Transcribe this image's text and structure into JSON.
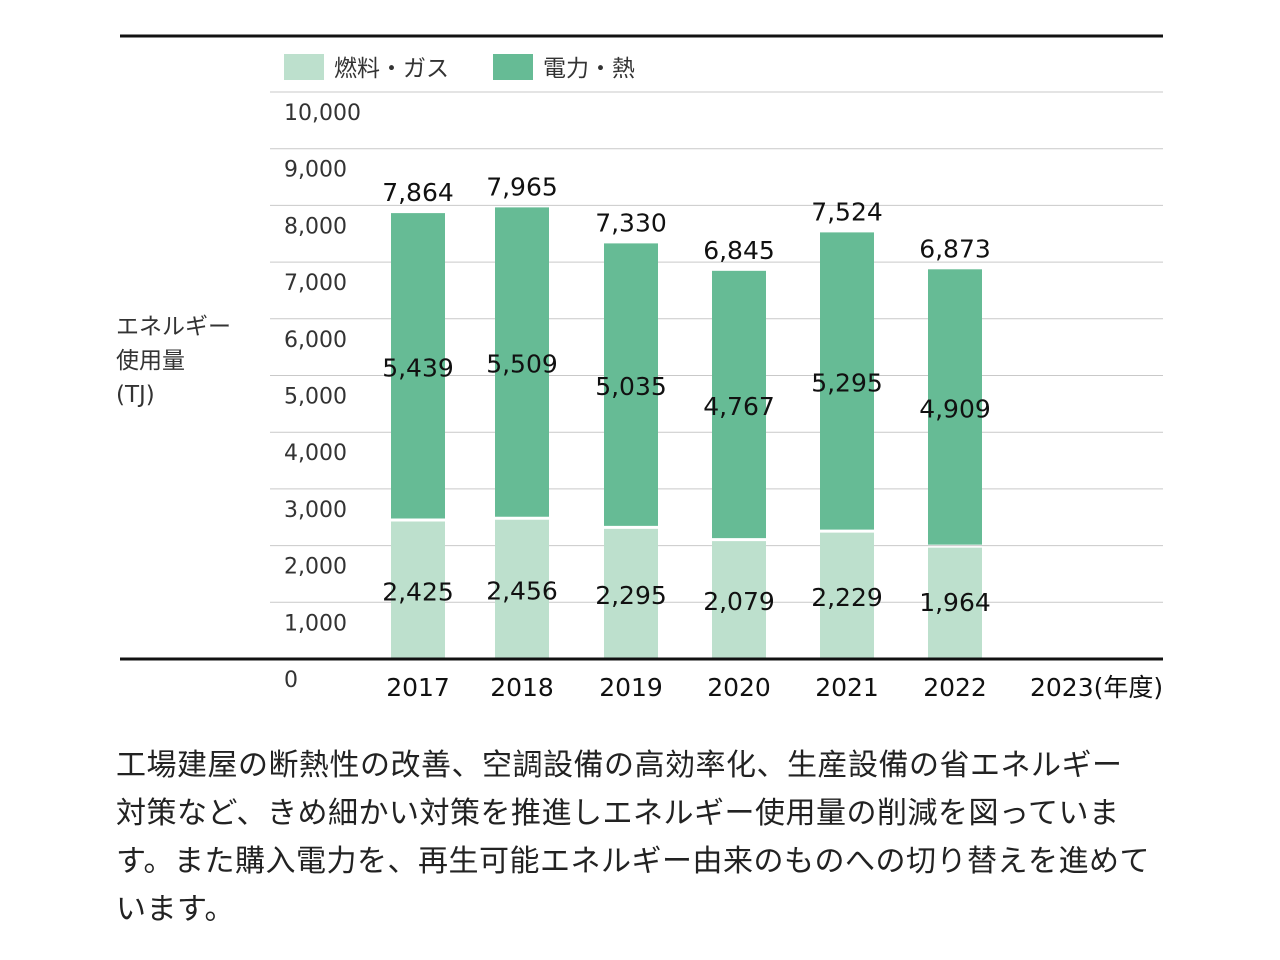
{
  "chart_data": {
    "type": "bar",
    "stacked": true,
    "categories": [
      "2017",
      "2018",
      "2019",
      "2020",
      "2021",
      "2022",
      "2023"
    ],
    "x_unit_label": "(年度)",
    "ylabel": "エネルギー\n使用量\n(TJ)",
    "ylabel_lines": [
      "エネルギー",
      "使用量",
      "(TJ)"
    ],
    "ylim": [
      0,
      10000
    ],
    "yticks": [
      0,
      1000,
      2000,
      3000,
      4000,
      5000,
      6000,
      7000,
      8000,
      9000,
      10000
    ],
    "ytick_labels": [
      "0",
      "1,000",
      "2,000",
      "3,000",
      "4,000",
      "5,000",
      "6,000",
      "7,000",
      "8,000",
      "9,000",
      "10,000"
    ],
    "grid": true,
    "legend_position": "top",
    "series": [
      {
        "name": "燃料・ガス",
        "color": "#bde0cd",
        "values": [
          2425,
          2456,
          2295,
          2079,
          2229,
          1964,
          null
        ],
        "labels": [
          "2,425",
          "2,456",
          "2,295",
          "2,079",
          "2,229",
          "1,964",
          ""
        ]
      },
      {
        "name": "電力・熱",
        "color": "#66bb95",
        "values": [
          5439,
          5509,
          5035,
          4767,
          5295,
          4909,
          null
        ],
        "labels": [
          "5,439",
          "5,509",
          "5,035",
          "4,767",
          "5,295",
          "4,909",
          ""
        ]
      }
    ],
    "totals": [
      7864,
      7965,
      7330,
      6845,
      7524,
      6873,
      null
    ],
    "total_labels": [
      "7,864",
      "7,965",
      "7,330",
      "6,845",
      "7,524",
      "6,873",
      ""
    ]
  },
  "caption": {
    "lines": [
      "工場建屋の断熱性の改善、空調設備の高効率化、生産設備の省エネルギー",
      "対策など、きめ細かい対策を推進しエネルギー使用量の削減を図っていま",
      "す。また購入電力を、再生可能エネルギー由来のものへの切り替えを進めて",
      "います。"
    ]
  }
}
